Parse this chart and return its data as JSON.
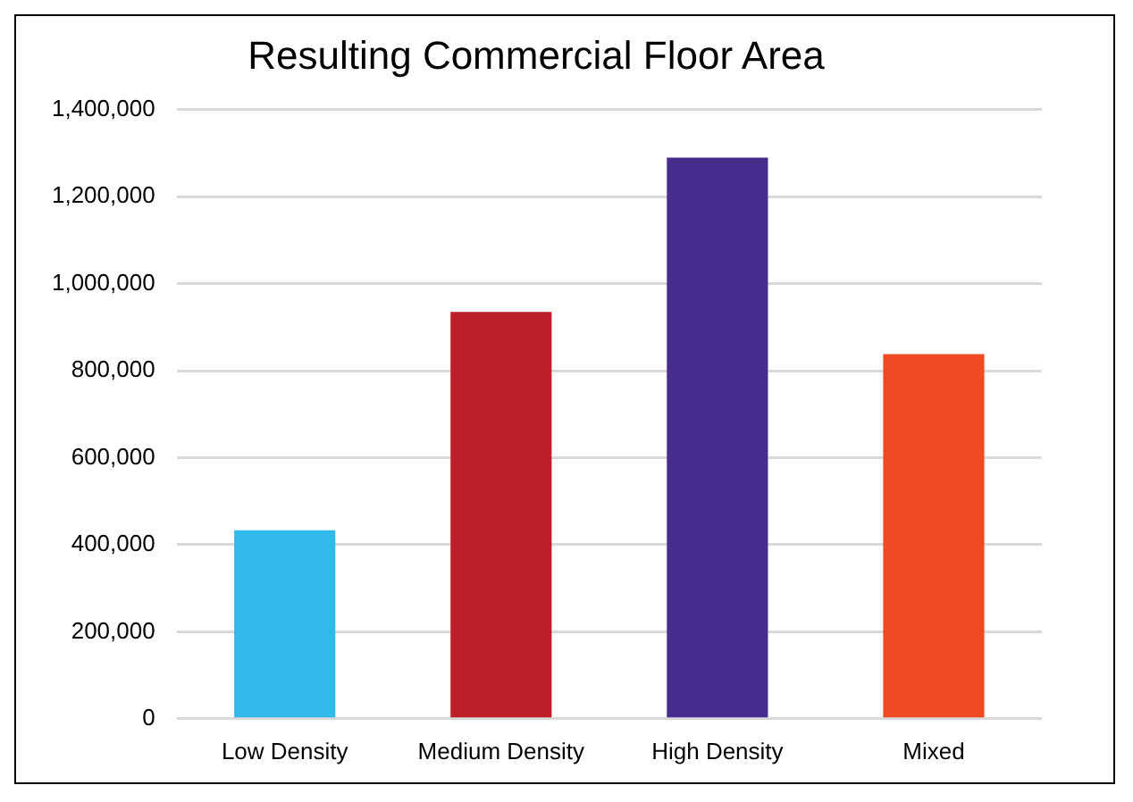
{
  "chart_data": {
    "type": "bar",
    "title": "Resulting Commercial Floor Area",
    "categories": [
      "Low Density",
      "Medium Density",
      "High Density",
      "Mixed"
    ],
    "values": [
      433000,
      935000,
      1290000,
      838000
    ],
    "colors": [
      "#31b9ea",
      "#be1e27",
      "#462c8d",
      "#ef4b23"
    ],
    "ylim": [
      0,
      1400000
    ],
    "yticks": [
      0,
      {
        "value": 200000,
        "label": "200,000"
      },
      {
        "value": 400000,
        "label": "400,000"
      },
      {
        "value": 600000,
        "label": "600,000"
      },
      {
        "value": 800000,
        "label": "800,000"
      },
      {
        "value": 1000000,
        "label": "1,000,000"
      },
      {
        "value": 1200000,
        "label": "1,200,000"
      },
      {
        "value": 1400000,
        "label": "1,400,000"
      }
    ],
    "grid": "y",
    "legend": false
  }
}
